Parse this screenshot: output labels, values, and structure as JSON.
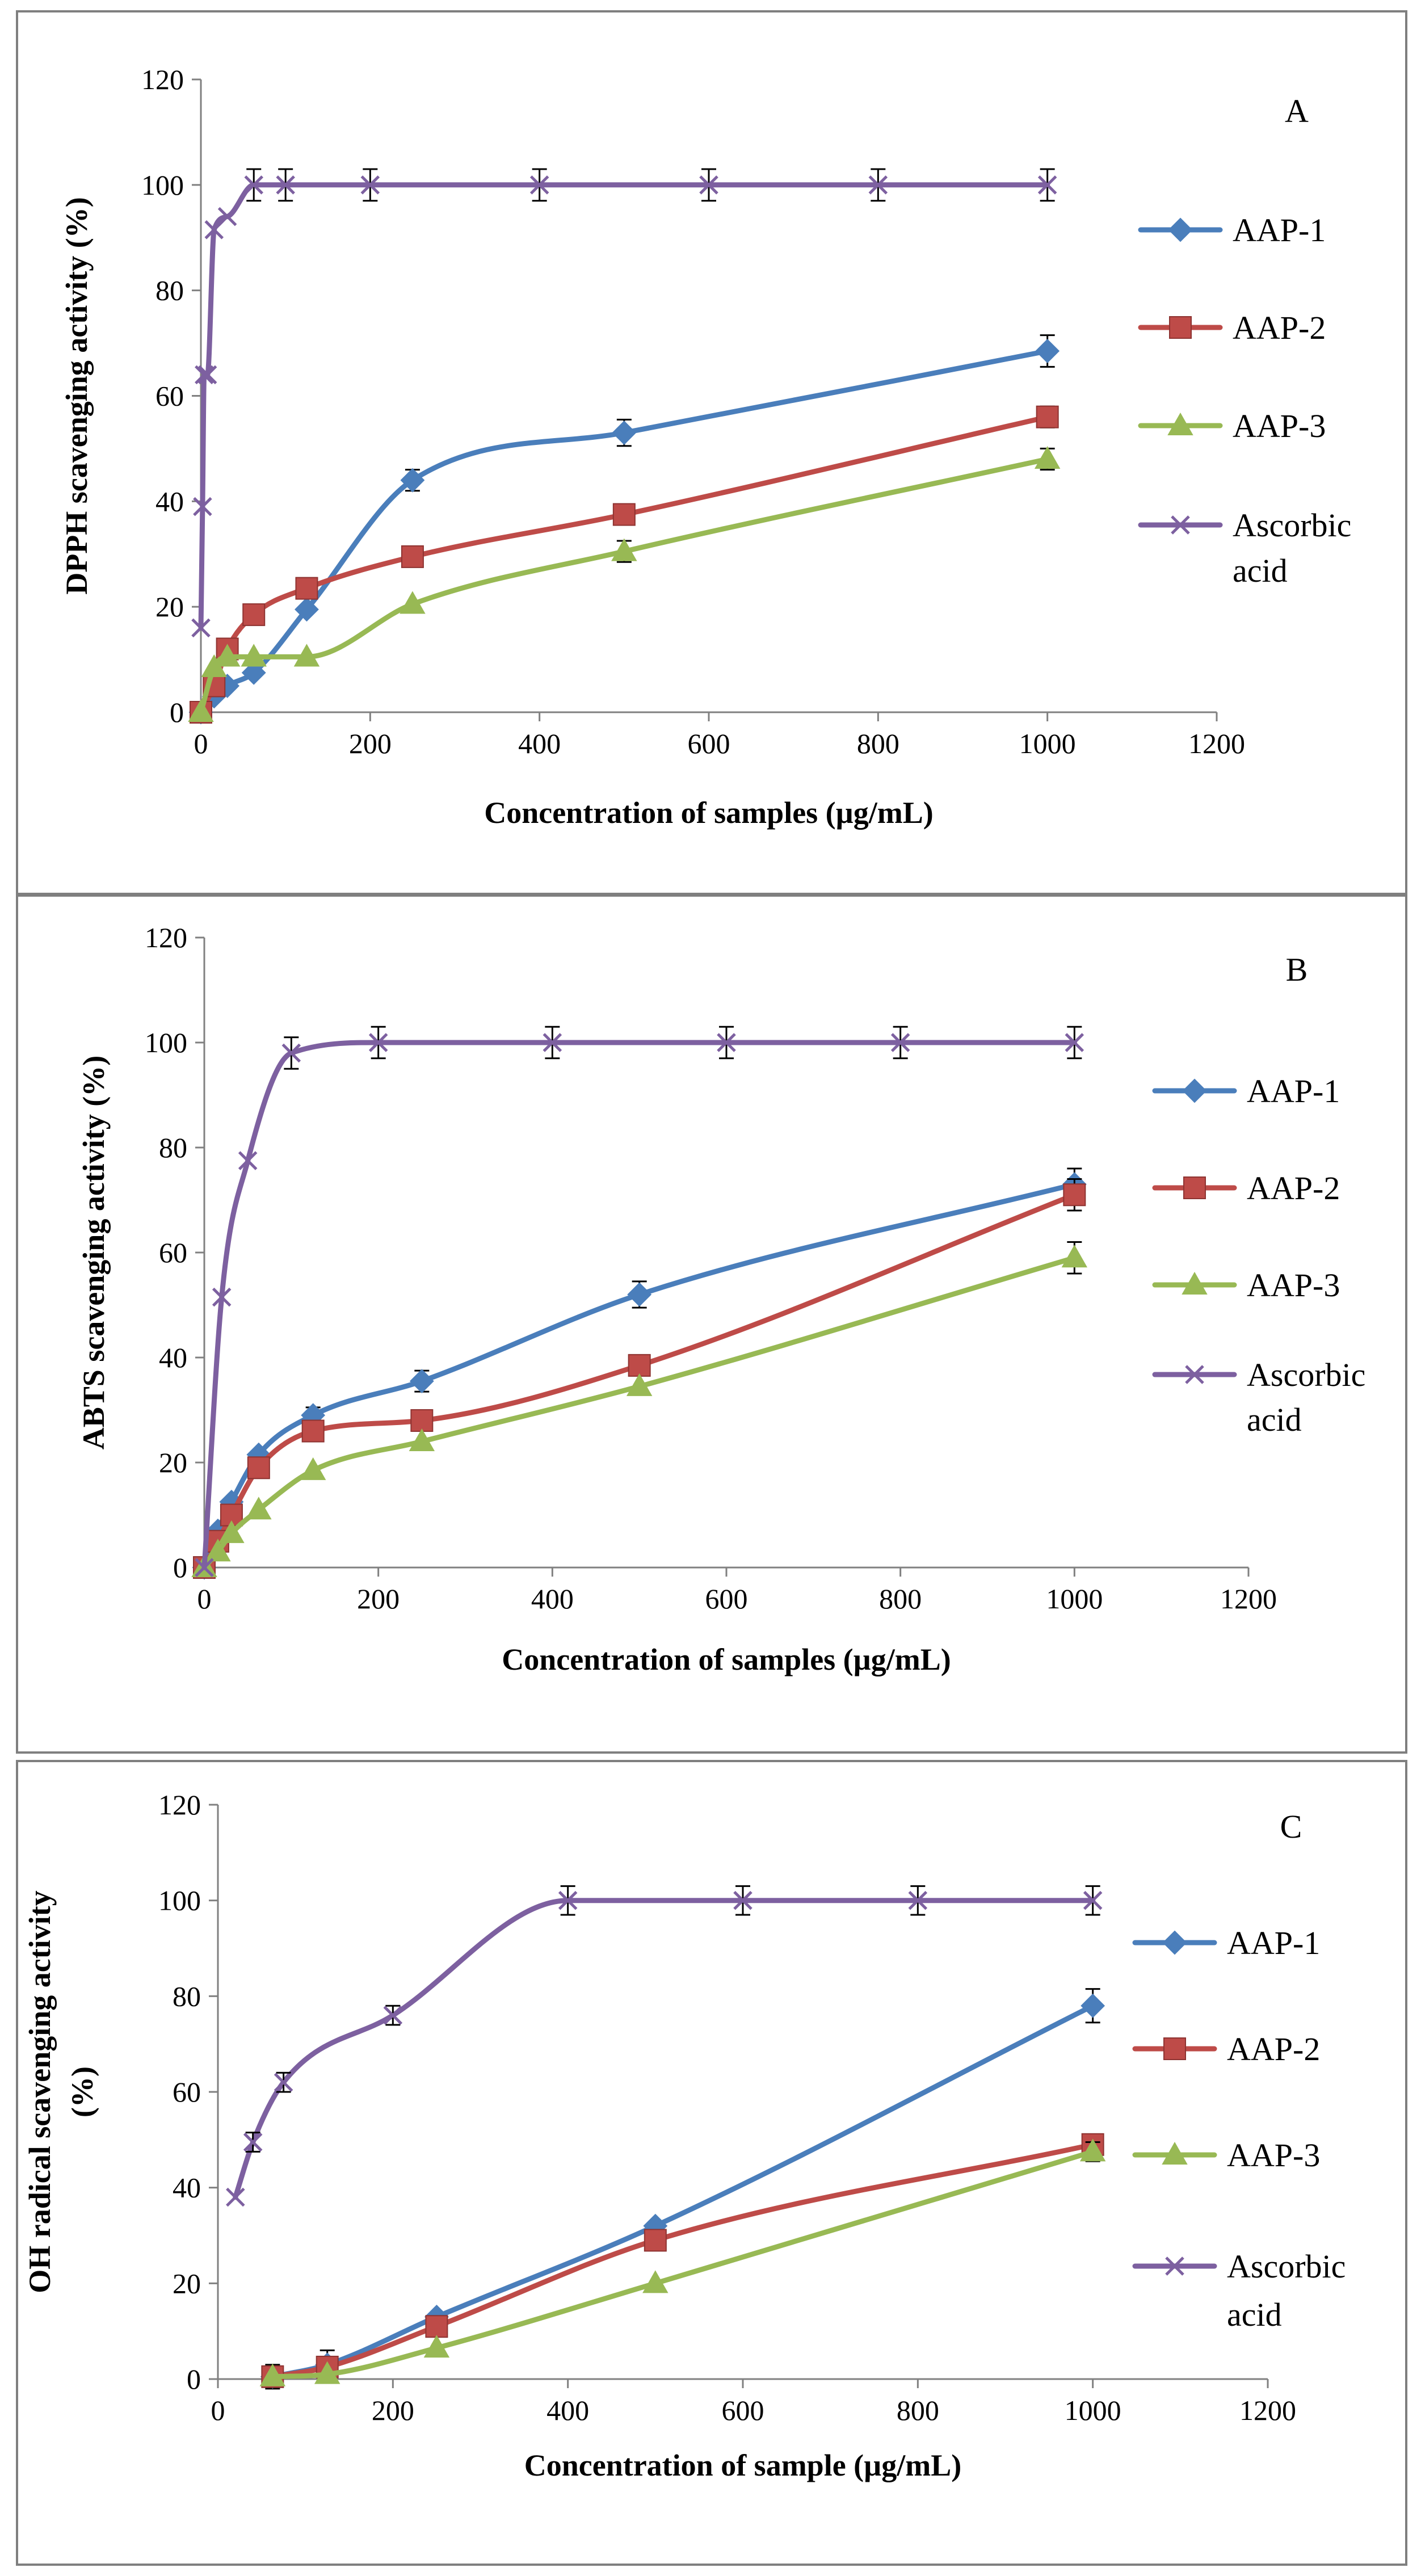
{
  "figure": {
    "colors": {
      "AAP-1": "#4a7ebb",
      "AAP-2": "#be4b48",
      "AAP-3": "#98b954",
      "Ascorbic acid": "#7d60a0",
      "axis": "#808080",
      "frame": "#7f7f7f"
    },
    "markers": {
      "AAP-1": "diamond",
      "AAP-2": "square",
      "AAP-3": "triangle",
      "Ascorbic acid": "x"
    }
  },
  "chart_data": [
    {
      "type": "line",
      "panel_label": "A",
      "xlabel": "Concentration of samples (µg/mL)",
      "ylabel": "DPPH scavenging activity (%)",
      "xlim": [
        0,
        1200
      ],
      "ylim": [
        0,
        120
      ],
      "xticks": [
        "0",
        "200",
        "400",
        "600",
        "800",
        "1000",
        "1200"
      ],
      "yticks": [
        "0",
        "20",
        "40",
        "60",
        "80",
        "100",
        "120"
      ],
      "grid": false,
      "legend_position": "right",
      "series": [
        {
          "name": "AAP-1",
          "x": [
            0,
            15.6,
            31.25,
            62.5,
            125,
            250,
            500,
            1000
          ],
          "y": [
            0,
            3,
            5,
            7.5,
            19.5,
            44,
            53,
            68.5
          ],
          "err": [
            0,
            0,
            0,
            0,
            0,
            2,
            2.5,
            3
          ]
        },
        {
          "name": "AAP-2",
          "x": [
            0,
            15.6,
            31.25,
            62.5,
            125,
            250,
            500,
            1000
          ],
          "y": [
            0,
            5,
            12,
            18.5,
            23.5,
            29.5,
            37.5,
            56
          ],
          "err": [
            0,
            0,
            0,
            0,
            0,
            0,
            0,
            2
          ]
        },
        {
          "name": "AAP-3",
          "x": [
            0,
            15.6,
            31.25,
            62.5,
            125,
            250,
            500,
            1000
          ],
          "y": [
            0,
            8.5,
            10.5,
            10.5,
            10.5,
            20.5,
            30.5,
            48
          ],
          "err": [
            0,
            0,
            0,
            0,
            0,
            0,
            2,
            2
          ]
        },
        {
          "name": "Ascorbic acid",
          "x": [
            0,
            1.95,
            3.9,
            7.8,
            15.6,
            31.25,
            62.5,
            100,
            200,
            400,
            600,
            800,
            1000
          ],
          "y": [
            16,
            39,
            64,
            64,
            91.5,
            94,
            100,
            100,
            100,
            100,
            100,
            100,
            100
          ],
          "err": [
            0,
            0,
            0,
            0,
            0,
            0,
            3,
            3,
            3,
            3,
            3,
            3,
            3
          ]
        }
      ],
      "legend": {
        "labels": [
          "AAP-1",
          "AAP-2",
          "AAP-3",
          "Ascorbic",
          "acid"
        ]
      }
    },
    {
      "type": "line",
      "panel_label": "B",
      "xlabel": "Concentration  of samples (µg/mL)",
      "ylabel": "ABTS scavenging activity (%)",
      "xlim": [
        0,
        1200
      ],
      "ylim": [
        0,
        120
      ],
      "xticks": [
        "0",
        "200",
        "400",
        "600",
        "800",
        "1000",
        "1200"
      ],
      "yticks": [
        "0",
        "20",
        "40",
        "60",
        "80",
        "100",
        "120"
      ],
      "grid": false,
      "legend_position": "right",
      "series": [
        {
          "name": "AAP-1",
          "x": [
            0,
            15.6,
            31.25,
            62.5,
            125,
            250,
            500,
            1000
          ],
          "y": [
            0,
            7,
            12.5,
            21.5,
            29,
            35.5,
            52,
            73
          ],
          "err": [
            0,
            0,
            0,
            0,
            1.5,
            2,
            2.5,
            3
          ]
        },
        {
          "name": "AAP-2",
          "x": [
            0,
            15.6,
            31.25,
            62.5,
            125,
            250,
            500,
            1000
          ],
          "y": [
            0,
            5,
            10,
            19,
            26,
            28,
            38.5,
            71
          ],
          "err": [
            0,
            0,
            0,
            0,
            0,
            0,
            0,
            3
          ]
        },
        {
          "name": "AAP-3",
          "x": [
            0,
            15.6,
            31.25,
            62.5,
            125,
            250,
            500,
            1000
          ],
          "y": [
            0,
            3,
            6.5,
            11,
            18.5,
            24,
            34.5,
            59
          ],
          "err": [
            0,
            0,
            0,
            0,
            0,
            0,
            0,
            3
          ]
        },
        {
          "name": "Ascorbic acid",
          "x": [
            0,
            20,
            50,
            100,
            200,
            400,
            600,
            800,
            1000
          ],
          "y": [
            0,
            51.5,
            77.5,
            98,
            100,
            100,
            100,
            100,
            100
          ],
          "err": [
            0,
            0,
            0,
            3,
            3,
            3,
            3,
            3,
            3
          ]
        }
      ],
      "legend": {
        "labels": [
          "AAP-1",
          "AAP-2",
          "AAP-3",
          "Ascorbic",
          "acid"
        ]
      }
    },
    {
      "type": "line",
      "panel_label": "C",
      "xlabel": "Concentration of sample (µg/mL)",
      "ylabel_lines": [
        "OH radical scavenging activity",
        "(%)"
      ],
      "xlim": [
        0,
        1200
      ],
      "ylim": [
        0,
        120
      ],
      "xticks": [
        "0",
        "200",
        "400",
        "600",
        "800",
        "1000",
        "1200"
      ],
      "yticks": [
        "0",
        "20",
        "40",
        "60",
        "80",
        "100",
        "120"
      ],
      "grid": false,
      "legend_position": "right",
      "series": [
        {
          "name": "AAP-1",
          "x": [
            62.5,
            125,
            250,
            500,
            1000
          ],
          "y": [
            0.5,
            3,
            13,
            32,
            78
          ],
          "err": [
            2.5,
            3,
            0,
            0,
            3.5
          ]
        },
        {
          "name": "AAP-2",
          "x": [
            62.5,
            125,
            250,
            500,
            1000
          ],
          "y": [
            0.5,
            2.5,
            11,
            29,
            49
          ],
          "err": [
            0,
            0,
            0,
            0,
            0
          ]
        },
        {
          "name": "AAP-3",
          "x": [
            62.5,
            125,
            250,
            500,
            1000
          ],
          "y": [
            0.5,
            1,
            6.5,
            20,
            47.5
          ],
          "err": [
            0,
            0,
            0,
            0,
            2
          ]
        },
        {
          "name": "Ascorbic acid",
          "x": [
            20,
            40,
            75,
            200,
            400,
            600,
            800,
            1000
          ],
          "y": [
            38,
            49.5,
            62,
            76,
            100,
            100,
            100,
            100
          ],
          "err": [
            0,
            2,
            2,
            2,
            3,
            3,
            3,
            3
          ]
        }
      ],
      "legend": {
        "labels": [
          "AAP-1",
          "AAP-2",
          "AAP-3",
          "Ascorbic",
          "acid"
        ]
      }
    }
  ]
}
